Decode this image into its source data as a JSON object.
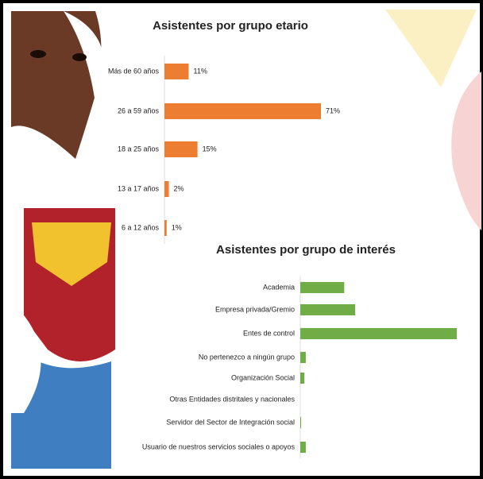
{
  "chart_data": [
    {
      "type": "hbar",
      "title": "Asistentes por grupo etario",
      "categories": [
        "Más de 60 años",
        "26 a 59 años",
        "18 a 25 años",
        "13 a 17 años",
        "6 a 12 años"
      ],
      "values": [
        11,
        71,
        15,
        2,
        1
      ],
      "value_labels": [
        "11%",
        "71%",
        "15%",
        "2%",
        "1%"
      ],
      "color": "#ed7d31"
    },
    {
      "type": "hbar",
      "title": "Asistentes por grupo de interés",
      "categories": [
        "Academia",
        "Empresa privada/Gremio",
        "Entes de control",
        "No pertenezco a ningún grupo",
        "Organización Social",
        "Otras Entidades distritales y nacionales",
        "Servidor del Sector de Integración social",
        "Usuario de nuestros servicios sociales o apoyos"
      ],
      "values": [
        16,
        20,
        57,
        2,
        1.5,
        0,
        0.3,
        2
      ],
      "color": "#70ad47"
    }
  ]
}
